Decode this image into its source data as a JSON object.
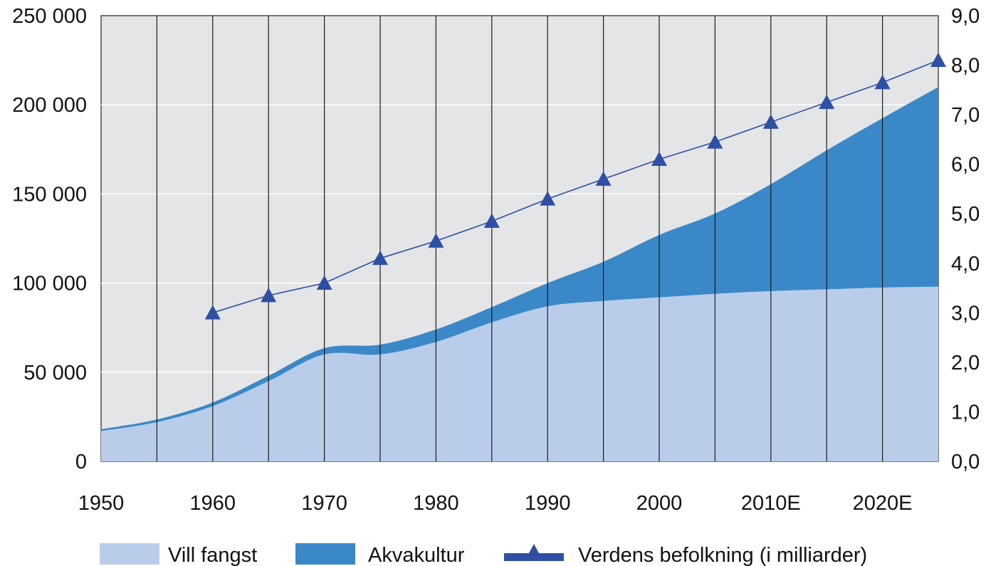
{
  "chart_data": {
    "type": "area",
    "x": [
      1950,
      1955,
      1960,
      1965,
      1970,
      1975,
      1980,
      1985,
      1990,
      1995,
      2000,
      2005,
      2010,
      2015,
      2020,
      2025
    ],
    "x_tick_values": [
      1950,
      1960,
      1970,
      1980,
      1990,
      2000,
      2010,
      2020
    ],
    "x_tick_labels": [
      "1950",
      "1960",
      "1970",
      "1980",
      "1990",
      "2000",
      "2010E",
      "2020E"
    ],
    "y_left_ticks": [
      "0",
      "50 000",
      "100 000",
      "150 000",
      "200 000",
      "250 000"
    ],
    "y_left_range": [
      0,
      250000
    ],
    "y_right_ticks": [
      "0,0",
      "1,0",
      "2,0",
      "3,0",
      "4,0",
      "5,0",
      "6,0",
      "7,0",
      "8,0",
      "9,0"
    ],
    "y_right_range": [
      0,
      9
    ],
    "grid": "vertical lines at every 5 years, horizontal lines at left-axis ticks",
    "legend_position": "bottom",
    "series": [
      {
        "name": "Vill fangst",
        "type": "area",
        "axis": "left",
        "color": "#b9cdea",
        "values": [
          17000,
          22000,
          31000,
          45000,
          60000,
          60000,
          67000,
          78000,
          87000,
          90000,
          92000,
          94000,
          95500,
          96500,
          97500,
          98000
        ]
      },
      {
        "name": "Akvakultur",
        "type": "area",
        "axis": "left",
        "stacked_on": "Vill fangst",
        "color": "#3a88c8",
        "values": [
          1000,
          1500,
          2000,
          3000,
          3500,
          5500,
          7000,
          8500,
          13000,
          22000,
          35000,
          45000,
          60000,
          78000,
          95000,
          112000
        ]
      },
      {
        "name": "Verdens befolkning (i milliarder)",
        "type": "line",
        "axis": "right",
        "marker": "triangle",
        "color": "#2e4fa3",
        "x": [
          1960,
          1965,
          1970,
          1975,
          1980,
          1985,
          1990,
          1995,
          2000,
          2005,
          2010,
          2015,
          2020,
          2025
        ],
        "values": [
          3.0,
          3.35,
          3.6,
          4.1,
          4.45,
          4.85,
          5.3,
          5.7,
          6.1,
          6.45,
          6.85,
          7.25,
          7.65,
          8.1
        ]
      }
    ]
  },
  "legend": {
    "wild_label": "Vill fangst",
    "aqua_label": "Akvakultur",
    "population_label": "Verdens befolkning (i milliarder)"
  }
}
